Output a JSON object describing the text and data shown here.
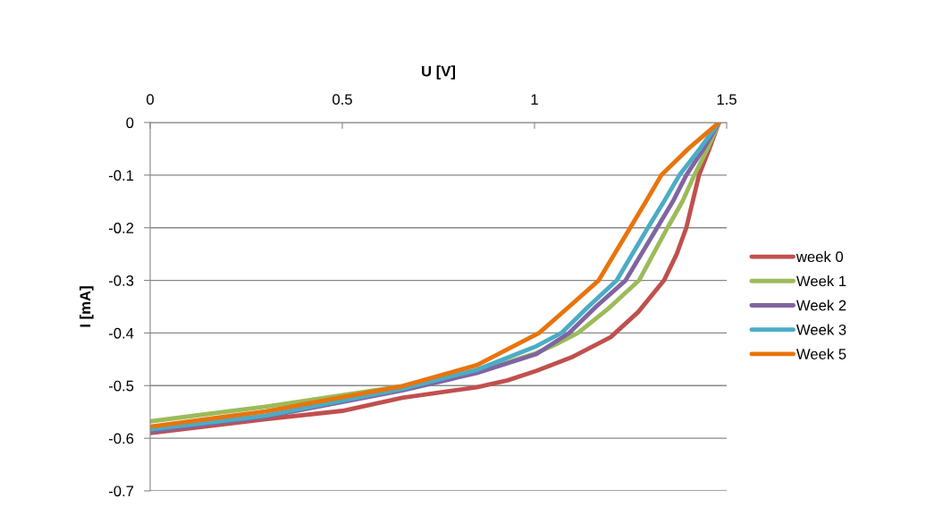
{
  "chart_data": {
    "type": "line",
    "xlabel": "U [V]",
    "ylabel": "I [mA]",
    "xlim": [
      0,
      1.5
    ],
    "xticks": [
      0,
      0.5,
      1,
      1.5
    ],
    "ylim": [
      -0.7,
      0
    ],
    "yticks": [
      -0.7,
      -0.6,
      -0.5,
      -0.4,
      -0.3,
      -0.2,
      -0.1,
      0
    ],
    "grid": "y",
    "legend": "right",
    "marker": "none",
    "line_style": "solid",
    "series": [
      {
        "name": "week 0",
        "color": "#c0504d",
        "x": [
          0,
          0.3,
          0.5,
          0.656,
          0.85,
          0.93,
          1.005,
          1.1,
          1.198,
          1.27,
          1.337,
          1.37,
          1.395,
          1.428,
          1.455,
          1.48
        ],
        "values": [
          -0.59,
          -0.564,
          -0.548,
          -0.523,
          -0.503,
          -0.49,
          -0.472,
          -0.445,
          -0.408,
          -0.36,
          -0.3,
          -0.25,
          -0.2,
          -0.1,
          -0.05,
          0
        ]
      },
      {
        "name": "Week 1",
        "color": "#9bbb59",
        "x": [
          0,
          0.3,
          0.656,
          0.85,
          1.005,
          1.06,
          1.113,
          1.19,
          1.272,
          1.346,
          1.385,
          1.416,
          1.45,
          1.48
        ],
        "values": [
          -0.568,
          -0.54,
          -0.501,
          -0.475,
          -0.438,
          -0.42,
          -0.4,
          -0.355,
          -0.3,
          -0.2,
          -0.15,
          -0.1,
          -0.05,
          0
        ]
      },
      {
        "name": "Week 2",
        "color": "#8064a2",
        "x": [
          0,
          0.3,
          0.656,
          0.85,
          1.005,
          1.09,
          1.16,
          1.237,
          1.319,
          1.36,
          1.395,
          1.44,
          1.48
        ],
        "values": [
          -0.587,
          -0.559,
          -0.509,
          -0.476,
          -0.44,
          -0.4,
          -0.35,
          -0.3,
          -0.2,
          -0.15,
          -0.1,
          -0.05,
          0
        ]
      },
      {
        "name": "Week 3",
        "color": "#4bacc6",
        "x": [
          0,
          0.3,
          0.656,
          0.85,
          1.005,
          1.07,
          1.14,
          1.214,
          1.295,
          1.337,
          1.377,
          1.43,
          1.48
        ],
        "values": [
          -0.583,
          -0.557,
          -0.506,
          -0.47,
          -0.425,
          -0.4,
          -0.35,
          -0.3,
          -0.2,
          -0.15,
          -0.1,
          -0.05,
          0
        ]
      },
      {
        "name": "Week 5",
        "color": "#e8740c",
        "x": [
          0,
          0.3,
          0.656,
          0.85,
          1.012,
          1.09,
          1.167,
          1.249,
          1.29,
          1.33,
          1.4,
          1.48
        ],
        "values": [
          -0.578,
          -0.549,
          -0.501,
          -0.461,
          -0.4,
          -0.35,
          -0.3,
          -0.2,
          -0.15,
          -0.1,
          -0.05,
          0
        ]
      }
    ]
  }
}
